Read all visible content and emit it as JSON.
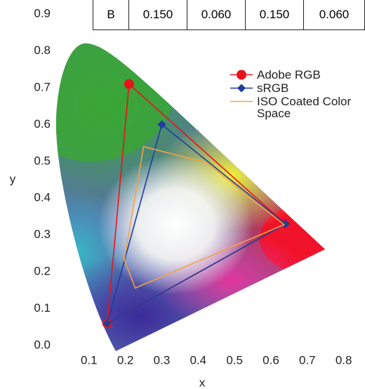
{
  "table": {
    "rows": [
      [
        "B",
        "0.150",
        "0.060",
        "0.150",
        "0.060"
      ]
    ]
  },
  "chart_data": {
    "type": "line",
    "x_label": "x",
    "y_label": "y",
    "xlim": [
      0,
      0.82
    ],
    "ylim": [
      0,
      0.9
    ],
    "xticks": [
      0.1,
      0.2,
      0.3,
      0.4,
      0.5,
      0.6,
      0.7,
      0.8
    ],
    "yticks": [
      {
        "value": 0,
        "label": "0.0"
      },
      0.1,
      0.2,
      0.3,
      0.4,
      0.5,
      0.6,
      0.7,
      0.8,
      0.9
    ],
    "legend": "upper right",
    "series": [
      {
        "name": "Adobe RGB",
        "color": "#e8141a",
        "marker": "circle",
        "x": [
          0.64,
          0.21,
          0.15
        ],
        "values": [
          0.33,
          0.71,
          0.06
        ]
      },
      {
        "name": "sRGB",
        "color": "#1f3d9c",
        "marker": "diamond",
        "x": [
          0.64,
          0.3,
          0.15
        ],
        "values": [
          0.33,
          0.6,
          0.06
        ]
      },
      {
        "name": "ISO Coated Color Space",
        "color": "#f5a142",
        "marker": "none",
        "x": [
          0.25,
          0.424,
          0.636,
          0.227,
          0.197
        ],
        "values": [
          0.54,
          0.496,
          0.328,
          0.156,
          0.233
        ]
      }
    ]
  }
}
